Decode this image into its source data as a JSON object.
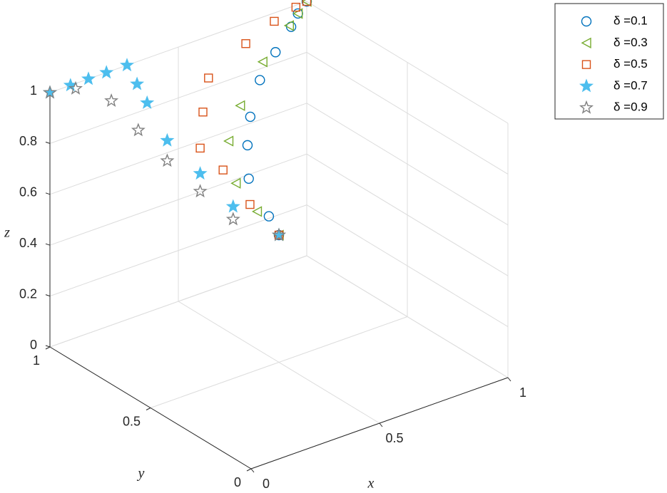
{
  "chart_data": {
    "type": "scatter3d",
    "xlabel": "x",
    "ylabel": "y",
    "zlabel": "z",
    "xlim": [
      0,
      1
    ],
    "ylim": [
      0,
      1
    ],
    "zlim": [
      0,
      1
    ],
    "xticks": [
      0,
      0.5,
      1
    ],
    "yticks": [
      0,
      0.5,
      1
    ],
    "zticks": [
      0,
      0.2,
      0.4,
      0.6,
      0.8,
      1
    ],
    "grid": true,
    "legend_position": "northeast",
    "series": [
      {
        "name": "δ =0.1",
        "color": "#0072BD",
        "marker": "circle",
        "filled": false,
        "x": [
          0.5,
          0.5,
          0.5,
          0.55,
          0.6,
          0.7,
          0.8,
          0.9,
          0.95,
          1
        ],
        "y": [
          0.5,
          0.55,
          0.65,
          0.72,
          0.77,
          0.85,
          0.9,
          0.95,
          0.98,
          1
        ],
        "z": [
          0.5,
          0.55,
          0.65,
          0.73,
          0.8,
          0.87,
          0.92,
          0.96,
          0.98,
          1
        ]
      },
      {
        "name": "δ =0.3",
        "color": "#77AC30",
        "marker": "triangle-left",
        "filled": false,
        "x": [
          0.5,
          0.47,
          0.45,
          0.5,
          0.6,
          0.75,
          0.9,
          0.95,
          1
        ],
        "y": [
          0.5,
          0.57,
          0.65,
          0.75,
          0.82,
          0.9,
          0.96,
          0.98,
          1
        ],
        "z": [
          0.5,
          0.57,
          0.65,
          0.75,
          0.82,
          0.9,
          0.96,
          0.98,
          1
        ]
      },
      {
        "name": "δ =0.5",
        "color": "#D95319",
        "marker": "square",
        "filled": false,
        "x": [
          0.5,
          0.45,
          0.4,
          0.35,
          0.4,
          0.5,
          0.7,
          0.85,
          0.95,
          1
        ],
        "y": [
          0.5,
          0.58,
          0.65,
          0.7,
          0.75,
          0.85,
          0.92,
          0.97,
          0.99,
          1
        ],
        "z": [
          0.5,
          0.6,
          0.72,
          0.8,
          0.9,
          0.95,
          0.98,
          0.99,
          1,
          1
        ]
      },
      {
        "name": "δ =0.7",
        "color": "#4DBEEE",
        "marker": "star",
        "filled": true,
        "x": [
          0.5,
          0.4,
          0.35,
          0.3,
          0.3,
          0.3,
          0.3,
          0.22,
          0.15,
          0.08,
          0
        ],
        "y": [
          0.5,
          0.6,
          0.7,
          0.8,
          0.9,
          0.95,
          1,
          1,
          1,
          1,
          1
        ],
        "z": [
          0.5,
          0.6,
          0.7,
          0.8,
          0.9,
          0.95,
          1,
          1,
          1,
          1,
          1
        ]
      },
      {
        "name": "δ =0.9",
        "color": "#808080",
        "marker": "star",
        "filled": false,
        "x": [
          0.5,
          0.4,
          0.35,
          0.3,
          0.25,
          0.2,
          0.1,
          0
        ],
        "y": [
          0.5,
          0.6,
          0.7,
          0.8,
          0.88,
          0.95,
          1,
          1
        ],
        "z": [
          0.5,
          0.55,
          0.63,
          0.72,
          0.82,
          0.92,
          0.98,
          1
        ]
      }
    ]
  }
}
